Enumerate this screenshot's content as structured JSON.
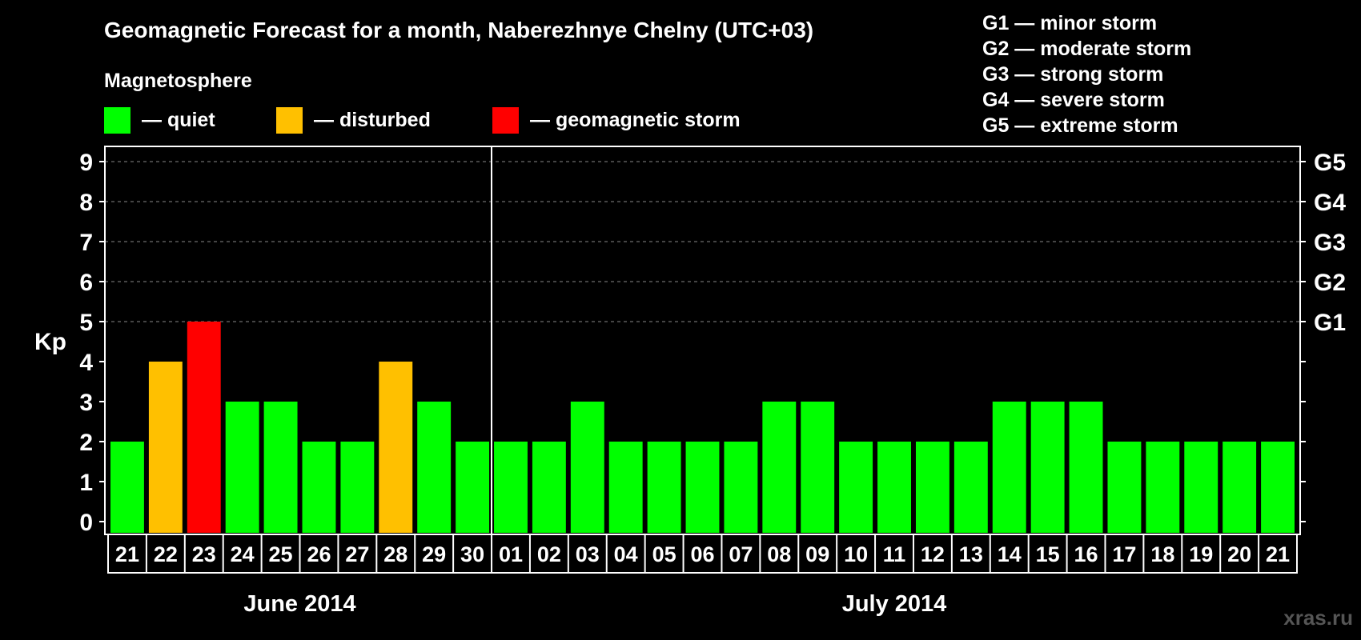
{
  "chart_data": {
    "type": "bar",
    "title": "Geomagnetic Forecast for a month, Naberezhnye Chelny (UTC+03)",
    "ylabel": "Kp",
    "ylim": [
      0,
      9.4
    ],
    "yticks": [
      "0",
      "1",
      "2",
      "3",
      "4",
      "5",
      "6",
      "7",
      "8",
      "9"
    ],
    "grid_from": 5,
    "legend": {
      "heading": "Magnetosphere",
      "items": [
        {
          "label": "— quiet",
          "color": "#00ff00"
        },
        {
          "label": "— disturbed",
          "color": "#ffc000"
        },
        {
          "label": "— geomagnetic storm",
          "color": "#ff0000"
        }
      ]
    },
    "g_scale": [
      {
        "level": 5,
        "tag": "G1",
        "desc": "G1 — minor storm"
      },
      {
        "level": 6,
        "tag": "G2",
        "desc": "G2 — moderate storm"
      },
      {
        "level": 7,
        "tag": "G3",
        "desc": "G3 — strong storm"
      },
      {
        "level": 8,
        "tag": "G4",
        "desc": "G4 — severe storm"
      },
      {
        "level": 9,
        "tag": "G5",
        "desc": "G5 — extreme storm"
      }
    ],
    "months": [
      {
        "label": "June 2014",
        "start": 0,
        "end": 9
      },
      {
        "label": "July 2014",
        "start": 10,
        "end": 30
      }
    ],
    "categories": [
      "21",
      "22",
      "23",
      "24",
      "25",
      "26",
      "27",
      "28",
      "29",
      "30",
      "01",
      "02",
      "03",
      "04",
      "05",
      "06",
      "07",
      "08",
      "09",
      "10",
      "11",
      "12",
      "13",
      "14",
      "15",
      "16",
      "17",
      "18",
      "19",
      "20",
      "21"
    ],
    "values": [
      2,
      4,
      5,
      3,
      3,
      2,
      2,
      4,
      3,
      2,
      2,
      2,
      3,
      2,
      2,
      2,
      2,
      3,
      3,
      2,
      2,
      2,
      2,
      3,
      3,
      3,
      2,
      2,
      2,
      2,
      2
    ],
    "status": [
      "quiet",
      "disturbed",
      "geomagnetic storm",
      "quiet",
      "quiet",
      "quiet",
      "quiet",
      "disturbed",
      "quiet",
      "quiet",
      "quiet",
      "quiet",
      "quiet",
      "quiet",
      "quiet",
      "quiet",
      "quiet",
      "quiet",
      "quiet",
      "quiet",
      "quiet",
      "quiet",
      "quiet",
      "quiet",
      "quiet",
      "quiet",
      "quiet",
      "quiet",
      "quiet",
      "quiet",
      "quiet"
    ],
    "colors": {
      "quiet": "#00ff00",
      "disturbed": "#ffc000",
      "geomagnetic storm": "#ff0000"
    }
  },
  "watermark": "xras.ru"
}
